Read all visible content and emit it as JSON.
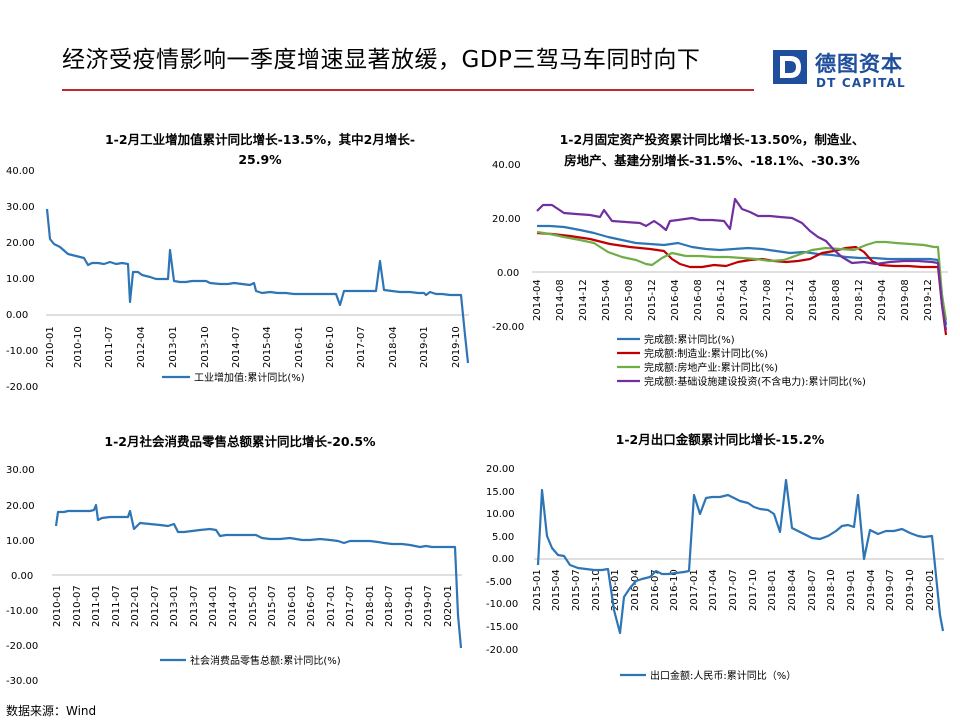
{
  "header": {
    "title": "经济受疫情影响一季度增速显著放缓，GDP三驾马车同时向下",
    "logo_cn": "德图资本",
    "logo_en": "DT CAPITAL"
  },
  "source": "数据来源：Wind",
  "charts": [
    {
      "type": "line",
      "title_lines": [
        "1-2月工业增加值累计同比增长-13.5%，其中2月增长-",
        "25.9%"
      ],
      "y_ticks": [
        "40.00",
        "30.00",
        "20.00",
        "10.00",
        "0.00",
        "-10.00",
        "-20.00"
      ],
      "x_ticks": [
        "2010-01",
        "2010-10",
        "2011-07",
        "2012-04",
        "2013-01",
        "2013-10",
        "2014-07",
        "2015-04",
        "2016-01",
        "2016-10",
        "2017-07",
        "2018-04",
        "2019-01",
        "2019-10"
      ],
      "legend": [
        "工业增加值:累计同比(%)"
      ],
      "colors": [
        "#2e75b6"
      ]
    },
    {
      "type": "line",
      "title_lines": [
        "1-2月固定资产投资累计同比增长-13.50%，制造业、",
        "房地产、基建分别增长-31.5%、-18.1%、-30.3%"
      ],
      "y_ticks": [
        "40.00",
        "20.00",
        "0.00",
        "-20.00"
      ],
      "x_ticks": [
        "2014-04",
        "2014-08",
        "2014-12",
        "2015-04",
        "2015-08",
        "2015-12",
        "2016-04",
        "2016-08",
        "2016-12",
        "2017-04",
        "2017-08",
        "2017-12",
        "2018-04",
        "2018-08",
        "2018-12",
        "2019-04",
        "2019-08",
        "2019-12"
      ],
      "legend": [
        "完成额:累计同比(%)",
        "完成额:制造业:累计同比(%)",
        "完成额:房地产业:累计同比(%)",
        "完成额:基础设施建设投资(不含电力):累计同比(%)"
      ],
      "colors": [
        "#2e75b6",
        "#c00000",
        "#70ad47",
        "#7030a0"
      ]
    },
    {
      "type": "line",
      "title_lines": [
        "1-2月社会消费品零售总额累计同比增长-20.5%"
      ],
      "y_ticks": [
        "30.00",
        "20.00",
        "10.00",
        "0.00",
        "-10.00",
        "-20.00",
        "-30.00"
      ],
      "x_ticks": [
        "2010-01",
        "2010-07",
        "2011-01",
        "2011-07",
        "2012-01",
        "2012-07",
        "2013-01",
        "2013-07",
        "2014-01",
        "2014-07",
        "2015-01",
        "2015-07",
        "2016-01",
        "2016-07",
        "2017-01",
        "2017-07",
        "2018-01",
        "2018-07",
        "2019-01",
        "2019-07",
        "2020-01"
      ],
      "legend": [
        "社会消费品零售总额:累计同比(%)"
      ],
      "colors": [
        "#2e75b6"
      ]
    },
    {
      "type": "line",
      "title_lines": [
        "1-2月出口金额累计同比增长-15.2%"
      ],
      "y_ticks": [
        "20.00",
        "15.00",
        "10.00",
        "5.00",
        "0.00",
        "-5.00",
        "-10.00",
        "-15.00",
        "-20.00"
      ],
      "x_ticks": [
        "2015-01",
        "2015-04",
        "2015-07",
        "2015-10",
        "2016-01",
        "2016-04",
        "2016-07",
        "2016-10",
        "2017-01",
        "2017-04",
        "2017-07",
        "2017-10",
        "2018-01",
        "2018-04",
        "2018-07",
        "2018-10",
        "2019-01",
        "2019-04",
        "2019-07",
        "2019-10",
        "2020-01"
      ],
      "legend": [
        "出口金额:人民币:累计同比（%）"
      ],
      "colors": [
        "#2e75b6"
      ]
    }
  ]
}
